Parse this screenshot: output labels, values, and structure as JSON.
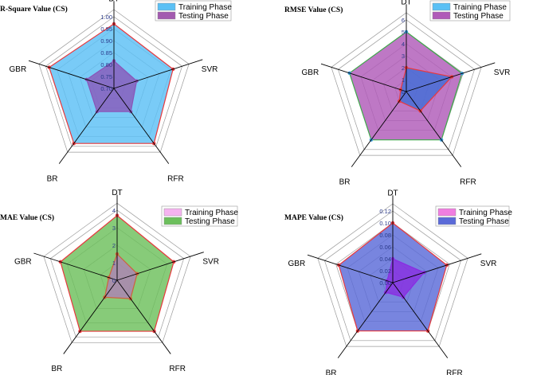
{
  "chart_data": [
    {
      "type": "radar",
      "title": "R-Square Value (CS)",
      "axes": [
        "DT",
        "SVR",
        "RFR",
        "BR",
        "GBR"
      ],
      "ticks": [
        "0.70",
        "0.75",
        "0.80",
        "0.85",
        "0.90",
        "0.95",
        "1.00"
      ],
      "rlim": [
        0.7,
        1.0
      ],
      "series": [
        {
          "name": "Training Phase",
          "values": [
            0.97,
            0.96,
            0.985,
            0.985,
            0.985
          ],
          "fill": "#5bc0f5",
          "stroke": "#e8383d",
          "marker": "#e8383d"
        },
        {
          "name": "Testing Phase",
          "values": [
            0.815,
            0.8,
            0.82,
            0.82,
            0.82
          ],
          "fill": "#8a55b8",
          "stroke": "#8a55b8",
          "marker": "#8a55b8"
        }
      ],
      "legend": [
        {
          "label": "Training Phase",
          "color": "#5bc0f5"
        },
        {
          "label": "Testing Phase",
          "color": "#a35bb0"
        }
      ]
    },
    {
      "type": "radar",
      "title": "RMSE Value (CS)",
      "axes": [
        "DT",
        "SVR",
        "RFR",
        "BR",
        "GBR"
      ],
      "ticks": [
        "0",
        "1",
        "2",
        "3",
        "4",
        "5",
        "6"
      ],
      "rlim": [
        0,
        6
      ],
      "series": [
        {
          "name": "Testing Phase",
          "values": [
            5.0,
            4.9,
            5.0,
            5.0,
            5.0
          ],
          "fill": "#b05ab8",
          "stroke": "#3fa84a",
          "marker": "#3a9ad9"
        },
        {
          "name": "Training Phase",
          "values": [
            2.0,
            4.0,
            2.0,
            1.0,
            0.5
          ],
          "fill": "#3b6ed8",
          "stroke": "#e8383d",
          "marker": "#e8383d"
        }
      ],
      "legend": [
        {
          "label": "Training Phase",
          "color": "#5bc0f5"
        },
        {
          "label": "Testing Phase",
          "color": "#b05ab8"
        }
      ]
    },
    {
      "type": "radar",
      "title": "MAE Value (CS)",
      "axes": [
        "DT",
        "SVR",
        "RFR",
        "BR",
        "GBR"
      ],
      "ticks": [
        "0",
        "1",
        "2",
        "3",
        "4"
      ],
      "rlim": [
        0,
        4
      ],
      "series": [
        {
          "name": "Testing Phase",
          "values": [
            3.7,
            3.4,
            3.6,
            3.6,
            3.4
          ],
          "fill": "#6cbf5c",
          "stroke": "#e8383d",
          "marker": "#e8383d"
        },
        {
          "name": "Training Phase",
          "values": [
            1.5,
            1.2,
            1.3,
            1.2,
            0.5
          ],
          "fill": "#b07fb8",
          "stroke": "#d0603a",
          "marker": "#d0603a"
        }
      ],
      "legend": [
        {
          "label": "Training Phase",
          "color": "#f5b3f0"
        },
        {
          "label": "Testing Phase",
          "color": "#6cbf5c"
        }
      ]
    },
    {
      "type": "radar",
      "title": "MAPE Value (CS)",
      "axes": [
        "DT",
        "SVR",
        "RFR",
        "BR",
        "GBR"
      ],
      "ticks": [
        "0.00",
        "0.02",
        "0.04",
        "0.06",
        "0.08",
        "0.10",
        "0.12"
      ],
      "rlim": [
        0,
        0.12
      ],
      "series": [
        {
          "name": "Testing Phase",
          "values": [
            0.1,
            0.095,
            0.1,
            0.1,
            0.095
          ],
          "fill": "#5a6ad8",
          "stroke": "#e8383d",
          "marker": "#e8383d"
        },
        {
          "name": "Training Phase",
          "values": [
            0.04,
            0.055,
            0.03,
            0.02,
            0.01
          ],
          "fill": "#8a2be2",
          "stroke": "#8a2be2",
          "marker": "#8a2be2"
        }
      ],
      "legend": [
        {
          "label": "Training Phase",
          "color": "#f07ee0"
        },
        {
          "label": "Testing Phase",
          "color": "#5a6ad8"
        }
      ]
    }
  ]
}
